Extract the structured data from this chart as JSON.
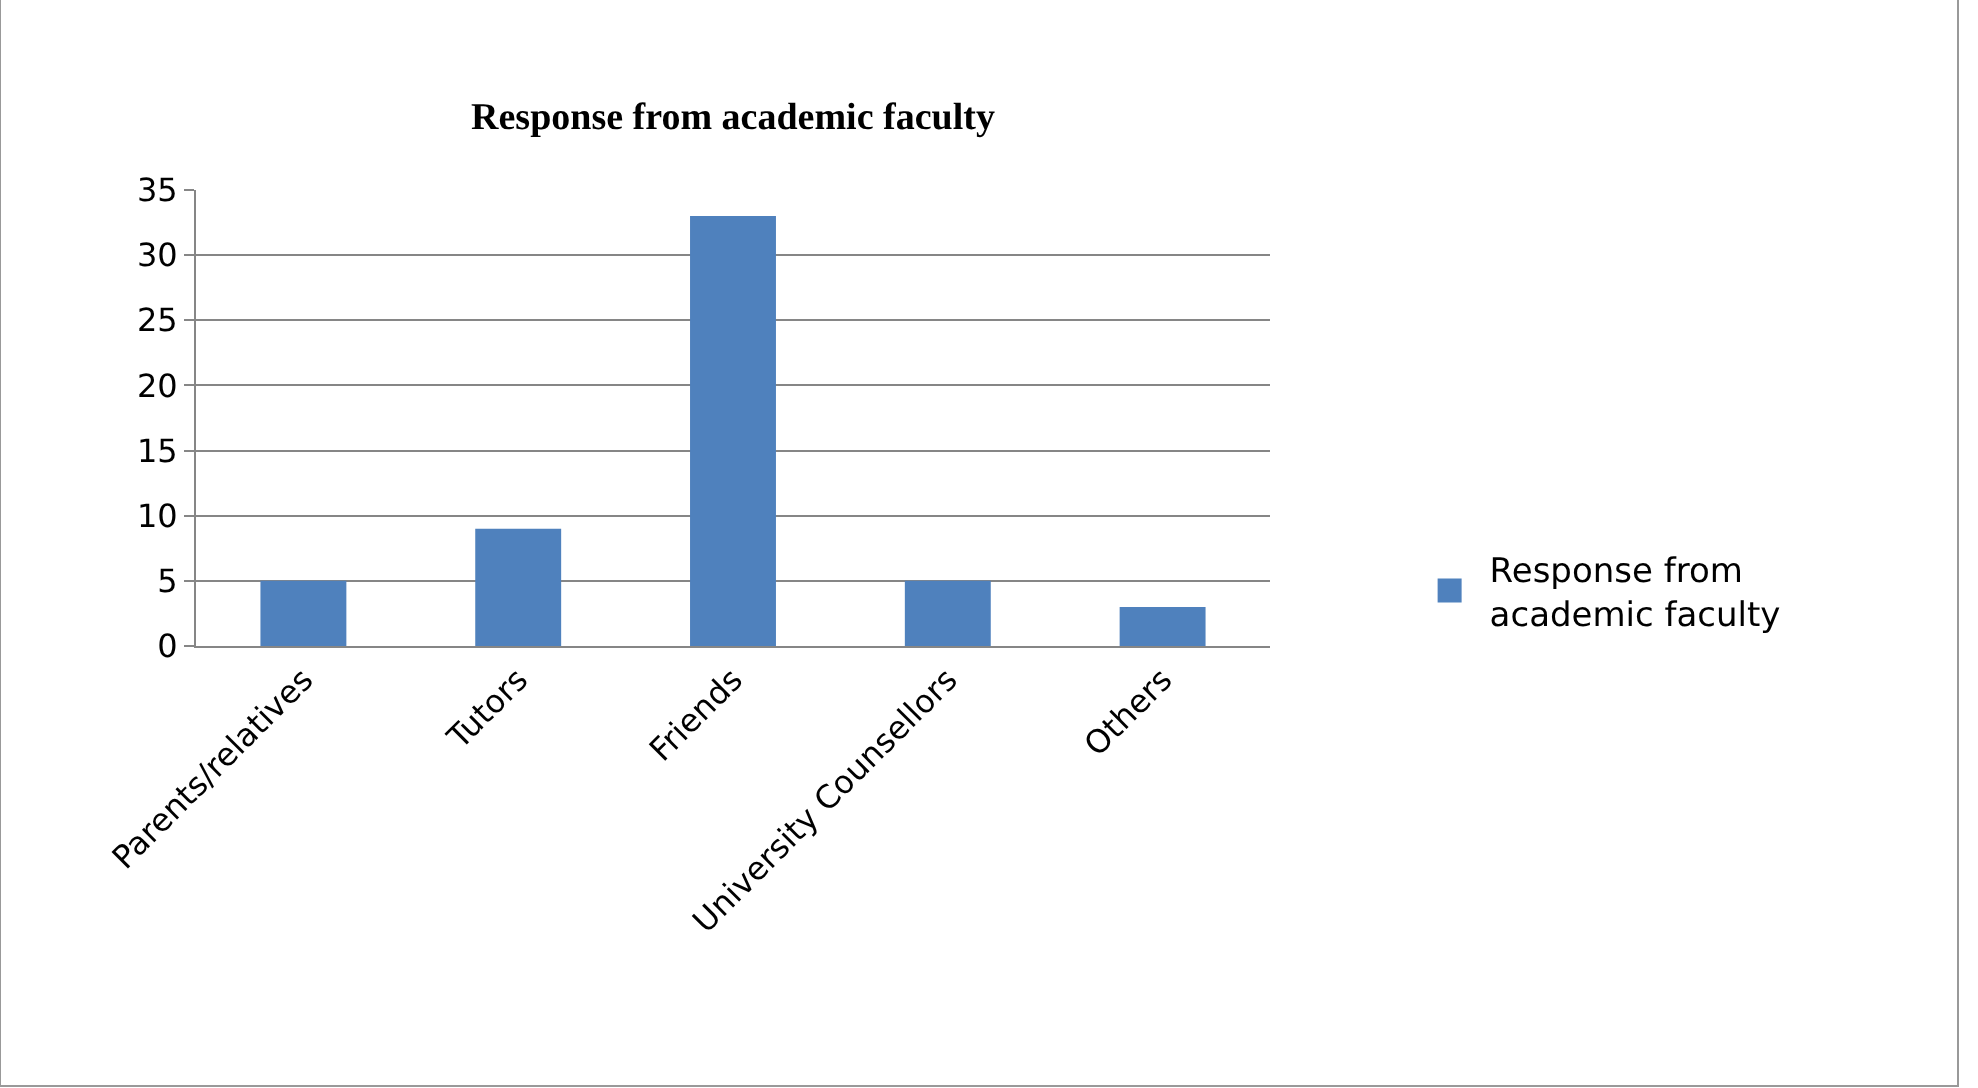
{
  "chart_data": {
    "type": "bar",
    "title": "Response from academic faculty",
    "categories": [
      "Parents/relatives",
      "Tutors",
      "Friends",
      "University Counsellors",
      "Others"
    ],
    "series": [
      {
        "name": "Response from academic faculty",
        "color": "#4f81bd",
        "values": [
          5,
          9,
          33,
          5,
          3
        ]
      }
    ],
    "ylim": [
      0,
      35
    ],
    "yticks": [
      0,
      5,
      10,
      15,
      20,
      25,
      30,
      35
    ],
    "grid": "y",
    "legend": "right"
  }
}
